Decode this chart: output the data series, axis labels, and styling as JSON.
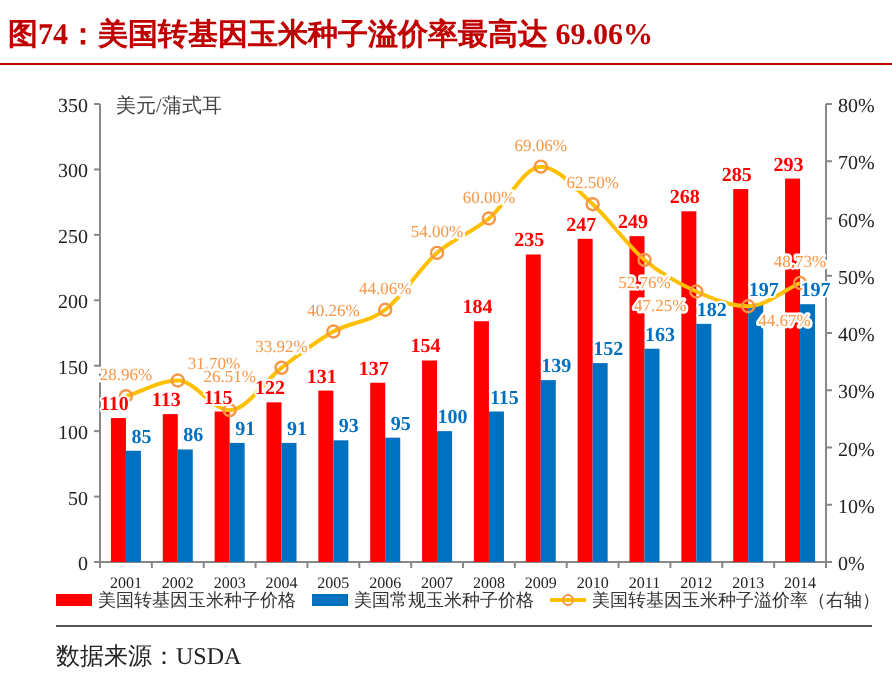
{
  "chart_data": {
    "type": "bar",
    "title": "图74：美国转基因玉米种子溢价率最高达 69.06%",
    "ylabel": "美元/蒲式耳",
    "categories": [
      "2001",
      "2002",
      "2003",
      "2004",
      "2005",
      "2006",
      "2007",
      "2008",
      "2009",
      "2010",
      "2011",
      "2012",
      "2013",
      "2014"
    ],
    "series": [
      {
        "name": "美国转基因玉米种子价格",
        "color": "#ff0000",
        "values": [
          110,
          113,
          115,
          122,
          131,
          137,
          154,
          184,
          235,
          247,
          249,
          268,
          285,
          293
        ]
      },
      {
        "name": "美国常规玉米种子价格",
        "color": "#0070c0",
        "values": [
          85,
          86,
          91,
          91,
          93,
          95,
          100,
          115,
          139,
          152,
          163,
          182,
          197,
          197
        ]
      },
      {
        "name": "美国转基因玉米种子溢价率（右轴）",
        "type": "line",
        "axis": "y2",
        "color": "#ffc000",
        "marker": "circle",
        "values": [
          28.96,
          31.7,
          26.51,
          33.92,
          40.26,
          44.06,
          54.0,
          60.0,
          69.06,
          62.5,
          52.76,
          47.25,
          44.67,
          48.73
        ],
        "value_labels": [
          "28.96%",
          "31.70%",
          "26.51%",
          "33.92%",
          "40.26%",
          "44.06%",
          "54.00%",
          "60.00%",
          "69.06%",
          "62.50%",
          "52.76%",
          "47.25%",
          "44.67%",
          "48.73%"
        ]
      }
    ],
    "ylim": [
      0,
      350
    ],
    "yticks": [
      0,
      50,
      100,
      150,
      200,
      250,
      300,
      350
    ],
    "y2lim": [
      0,
      80
    ],
    "y2ticks": [
      {
        "value": 0,
        "label": "0%"
      },
      {
        "value": 10,
        "label": "10%"
      },
      {
        "value": 20,
        "label": "20%"
      },
      {
        "value": 30,
        "label": "30%"
      },
      {
        "value": 40,
        "label": "40%"
      },
      {
        "value": 50,
        "label": "50%"
      },
      {
        "value": 60,
        "label": "60%"
      },
      {
        "value": 70,
        "label": "70%"
      },
      {
        "value": 80,
        "label": "80%"
      }
    ],
    "data_labels": true,
    "legend": "bottom",
    "grid": false,
    "annotations": [
      "数据来源：USDA"
    ]
  }
}
